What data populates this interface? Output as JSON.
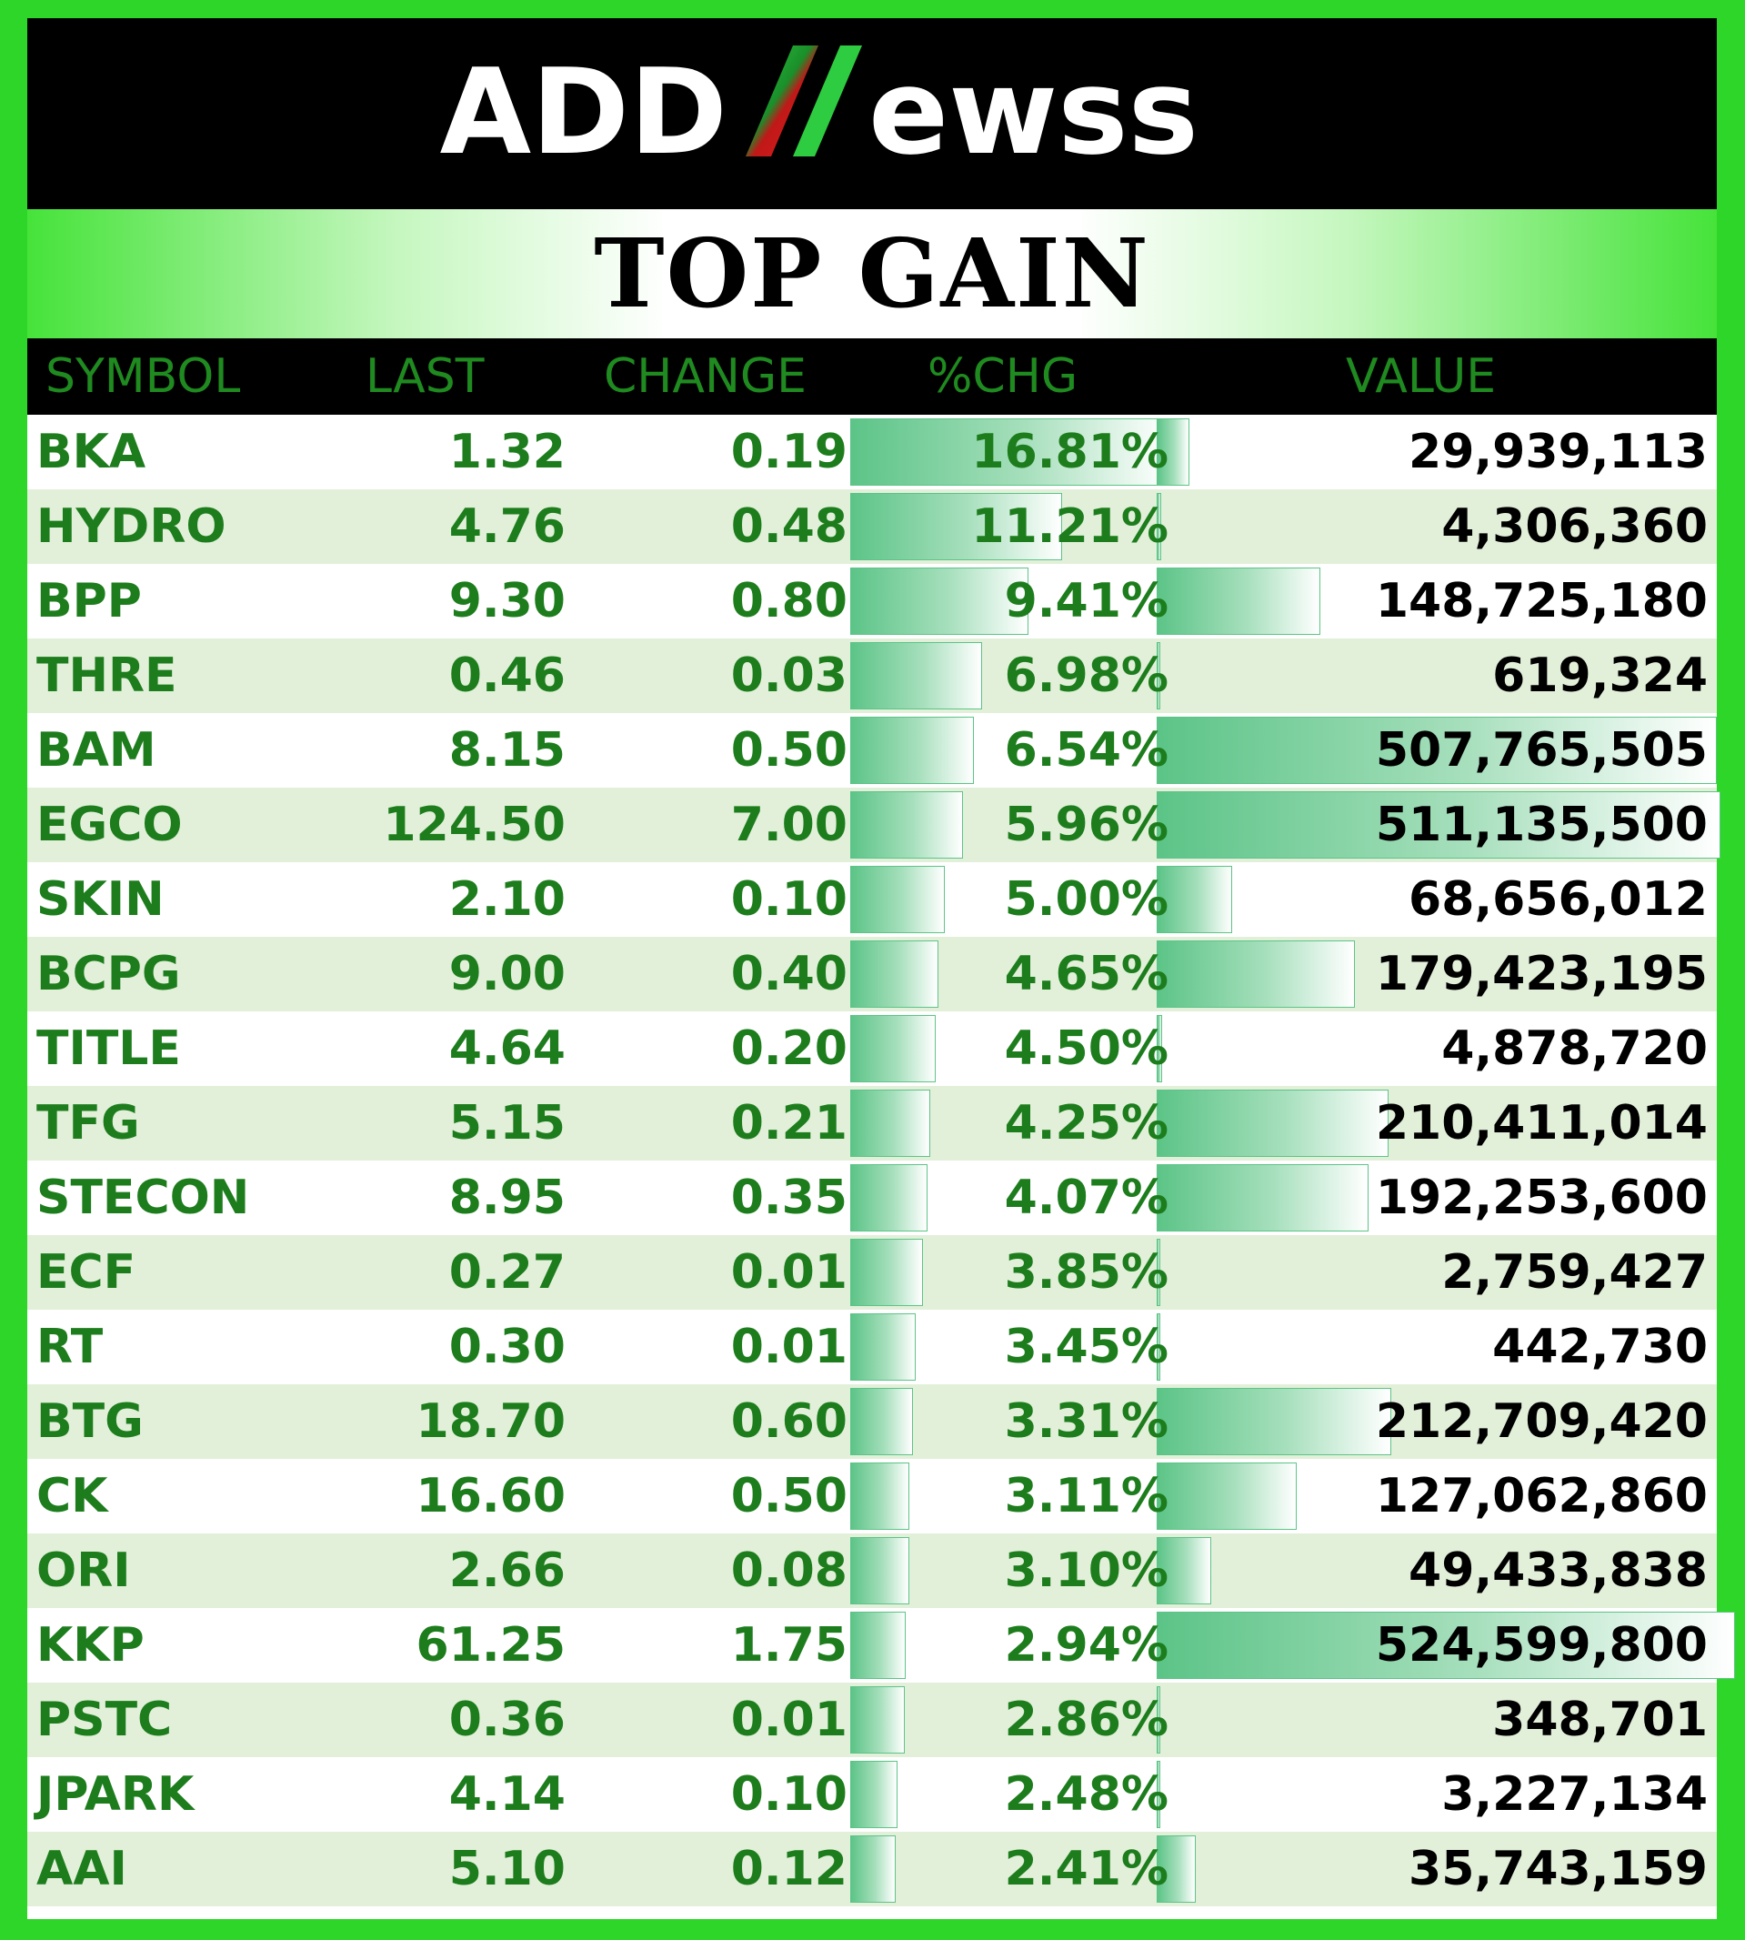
{
  "brand": {
    "logo_left": "ADD",
    "logo_n": "N",
    "logo_right": "ewss",
    "colors": {
      "background": "#2fd62a",
      "header_text": "#1f8a1f",
      "data_text": "#1d7d1d",
      "bar": "#5cc487",
      "row_alt": "#e2f0d9"
    }
  },
  "title": "TOP GAIN",
  "columns": [
    "SYMBOL",
    "LAST",
    "CHANGE",
    "%CHG",
    "VALUE"
  ],
  "rows": [
    {
      "symbol": "BKA",
      "last": "1.32",
      "change": "0.19",
      "pct": "16.81%",
      "value": "29,939,113",
      "pct_num": 16.81,
      "value_num": 29939113
    },
    {
      "symbol": "HYDRO",
      "last": "4.76",
      "change": "0.48",
      "pct": "11.21%",
      "value": "4,306,360",
      "pct_num": 11.21,
      "value_num": 4306360
    },
    {
      "symbol": "BPP",
      "last": "9.30",
      "change": "0.80",
      "pct": "9.41%",
      "value": "148,725,180",
      "pct_num": 9.41,
      "value_num": 148725180
    },
    {
      "symbol": "THRE",
      "last": "0.46",
      "change": "0.03",
      "pct": "6.98%",
      "value": "619,324",
      "pct_num": 6.98,
      "value_num": 619324
    },
    {
      "symbol": "BAM",
      "last": "8.15",
      "change": "0.50",
      "pct": "6.54%",
      "value": "507,765,505",
      "pct_num": 6.54,
      "value_num": 507765505
    },
    {
      "symbol": "EGCO",
      "last": "124.50",
      "change": "7.00",
      "pct": "5.96%",
      "value": "511,135,500",
      "pct_num": 5.96,
      "value_num": 511135500
    },
    {
      "symbol": "SKIN",
      "last": "2.10",
      "change": "0.10",
      "pct": "5.00%",
      "value": "68,656,012",
      "pct_num": 5.0,
      "value_num": 68656012
    },
    {
      "symbol": "BCPG",
      "last": "9.00",
      "change": "0.40",
      "pct": "4.65%",
      "value": "179,423,195",
      "pct_num": 4.65,
      "value_num": 179423195
    },
    {
      "symbol": "TITLE",
      "last": "4.64",
      "change": "0.20",
      "pct": "4.50%",
      "value": "4,878,720",
      "pct_num": 4.5,
      "value_num": 4878720
    },
    {
      "symbol": "TFG",
      "last": "5.15",
      "change": "0.21",
      "pct": "4.25%",
      "value": "210,411,014",
      "pct_num": 4.25,
      "value_num": 210411014
    },
    {
      "symbol": "STECON",
      "last": "8.95",
      "change": "0.35",
      "pct": "4.07%",
      "value": "192,253,600",
      "pct_num": 4.07,
      "value_num": 192253600
    },
    {
      "symbol": "ECF",
      "last": "0.27",
      "change": "0.01",
      "pct": "3.85%",
      "value": "2,759,427",
      "pct_num": 3.85,
      "value_num": 2759427
    },
    {
      "symbol": "RT",
      "last": "0.30",
      "change": "0.01",
      "pct": "3.45%",
      "value": "442,730",
      "pct_num": 3.45,
      "value_num": 442730
    },
    {
      "symbol": "BTG",
      "last": "18.70",
      "change": "0.60",
      "pct": "3.31%",
      "value": "212,709,420",
      "pct_num": 3.31,
      "value_num": 212709420
    },
    {
      "symbol": "CK",
      "last": "16.60",
      "change": "0.50",
      "pct": "3.11%",
      "value": "127,062,860",
      "pct_num": 3.11,
      "value_num": 127062860
    },
    {
      "symbol": "ORI",
      "last": "2.66",
      "change": "0.08",
      "pct": "3.10%",
      "value": "49,433,838",
      "pct_num": 3.1,
      "value_num": 49433838
    },
    {
      "symbol": "KKP",
      "last": "61.25",
      "change": "1.75",
      "pct": "2.94%",
      "value": "524,599,800",
      "pct_num": 2.94,
      "value_num": 524599800
    },
    {
      "symbol": "PSTC",
      "last": "0.36",
      "change": "0.01",
      "pct": "2.86%",
      "value": "348,701",
      "pct_num": 2.86,
      "value_num": 348701
    },
    {
      "symbol": "JPARK",
      "last": "4.14",
      "change": "0.10",
      "pct": "2.48%",
      "value": "3,227,134",
      "pct_num": 2.48,
      "value_num": 3227134
    },
    {
      "symbol": "AAI",
      "last": "5.10",
      "change": "0.12",
      "pct": "2.41%",
      "value": "35,743,159",
      "pct_num": 2.41,
      "value_num": 35743159
    }
  ]
}
